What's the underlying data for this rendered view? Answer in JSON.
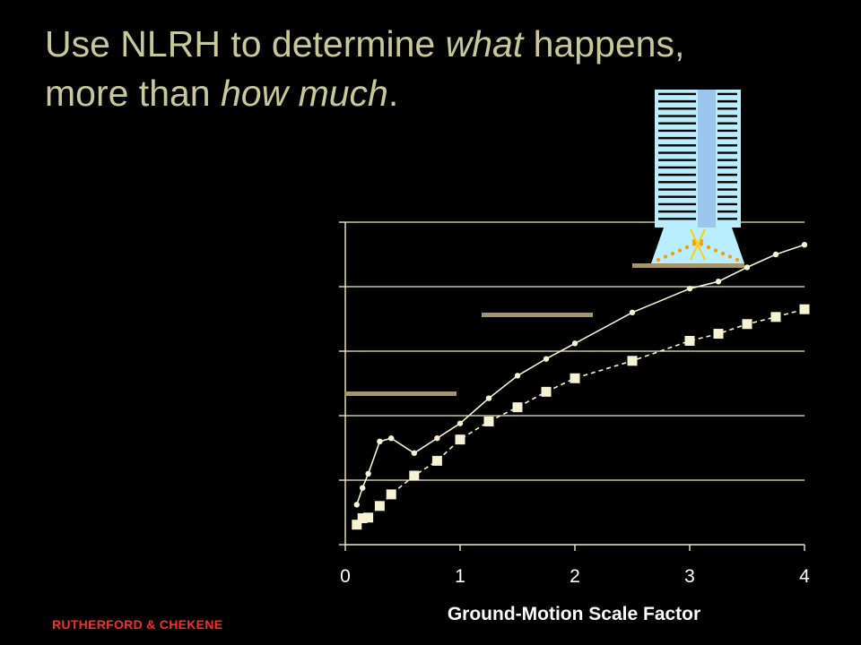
{
  "slide": {
    "title_part1": "Use NLRH to determine ",
    "title_em1": "what",
    "title_part2": " happens,",
    "title_part3": "more than ",
    "title_em2": "how much",
    "title_part4": ".",
    "footer": "RUTHERFORD & CHEKENE"
  },
  "chart_data": {
    "type": "line",
    "xlabel": "Ground-Motion Scale Factor",
    "ylabel": "",
    "xlim": [
      0,
      4
    ],
    "ylim": [
      0,
      5
    ],
    "x_ticks": [
      "0",
      "1",
      "2",
      "3",
      "4"
    ],
    "grid": "horizontal",
    "series": [
      {
        "marker": "circle",
        "line": "solid",
        "x": [
          0.1,
          0.15,
          0.2,
          0.3,
          0.4,
          0.6,
          0.8,
          1.0,
          1.25,
          1.5,
          1.75,
          2.0,
          2.5,
          3.0,
          3.25,
          3.5,
          3.75,
          4.0
        ],
        "y": [
          0.62,
          0.88,
          1.1,
          1.6,
          1.65,
          1.42,
          1.65,
          1.88,
          2.27,
          2.62,
          2.88,
          3.12,
          3.6,
          3.97,
          4.08,
          4.3,
          4.5,
          4.65
        ]
      },
      {
        "marker": "square",
        "line": "dashed",
        "x": [
          0.1,
          0.15,
          0.2,
          0.3,
          0.4,
          0.6,
          0.8,
          1.0,
          1.25,
          1.5,
          1.75,
          2.0,
          2.5,
          3.0,
          3.25,
          3.5,
          3.75,
          4.0
        ],
        "y": [
          0.31,
          0.41,
          0.42,
          0.6,
          0.78,
          1.07,
          1.3,
          1.63,
          1.91,
          2.13,
          2.37,
          2.58,
          2.85,
          3.16,
          3.27,
          3.42,
          3.53,
          3.65
        ]
      }
    ]
  },
  "colors": {
    "title": "#c8c89a",
    "footer": "#ff2a2a",
    "axis": "#f2ecc4",
    "series_line": "#f7f2d2",
    "building_frame": "#b8eeff",
    "building_core": "#9cc6ee",
    "floor_slab": "#000000",
    "hinge_green": "#22ee22",
    "hinge_orange": "#ff9a00",
    "ground": "#a8946a",
    "collapse_mark": "#ffd000"
  },
  "illustrations": {
    "building_1": "tall-building-small-drift-icon",
    "building_2": "tall-building-large-drift-icon",
    "building_3": "tall-building-collapse-icon"
  }
}
